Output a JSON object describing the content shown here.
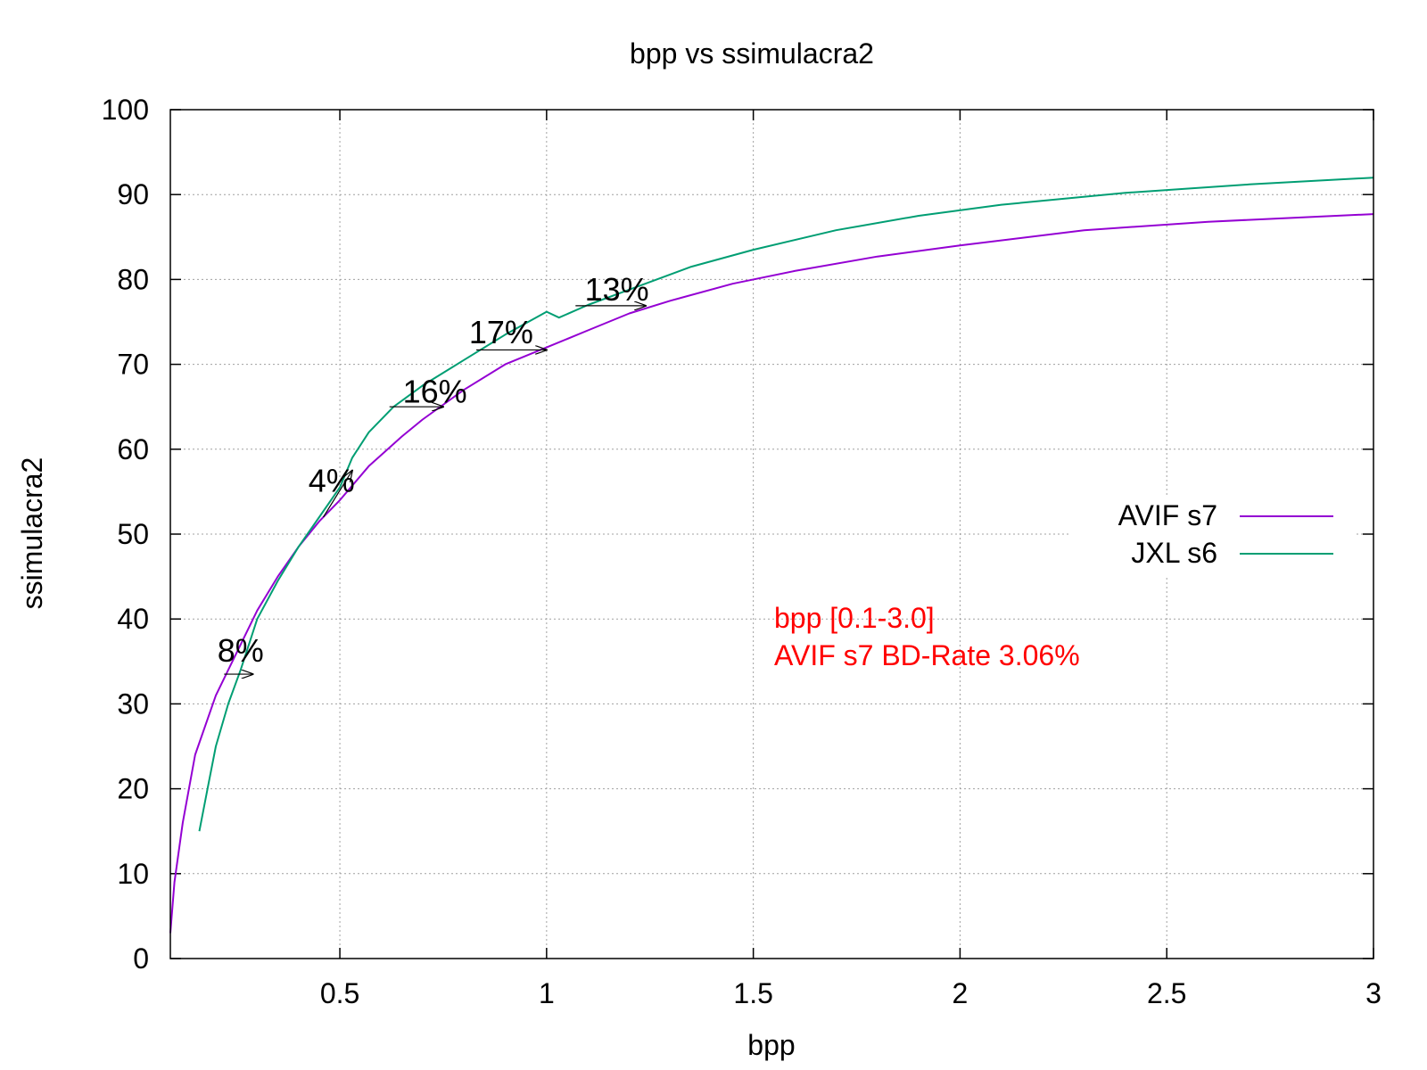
{
  "chart_data": {
    "type": "line",
    "title": "bpp vs ssimulacra2",
    "xlabel": "bpp",
    "ylabel": "ssimulacra2",
    "xlim": [
      0.09,
      3.0
    ],
    "ylim": [
      0,
      100
    ],
    "xticks": [
      0.5,
      1,
      1.5,
      2,
      2.5,
      3
    ],
    "xtick_labels": [
      "0.5",
      "1",
      "1.5",
      "2",
      "2.5",
      "3"
    ],
    "yticks": [
      0,
      10,
      20,
      30,
      40,
      50,
      60,
      70,
      80,
      90,
      100
    ],
    "ytick_labels": [
      "0",
      "10",
      "20",
      "30",
      "40",
      "50",
      "60",
      "70",
      "80",
      "90",
      "100"
    ],
    "grid": true,
    "legend_position": "right",
    "series": [
      {
        "name": "AVIF s7",
        "color": "#9400d3",
        "points": [
          [
            0.09,
            3
          ],
          [
            0.1,
            9
          ],
          [
            0.12,
            16
          ],
          [
            0.15,
            24
          ],
          [
            0.2,
            31
          ],
          [
            0.25,
            36
          ],
          [
            0.3,
            41
          ],
          [
            0.35,
            45
          ],
          [
            0.4,
            48.5
          ],
          [
            0.45,
            51.5
          ],
          [
            0.5,
            54
          ],
          [
            0.57,
            58
          ],
          [
            0.65,
            61.5
          ],
          [
            0.7,
            63.5
          ],
          [
            0.8,
            67
          ],
          [
            0.9,
            70
          ],
          [
            1.0,
            72
          ],
          [
            1.1,
            74
          ],
          [
            1.2,
            76
          ],
          [
            1.3,
            77.5
          ],
          [
            1.45,
            79.5
          ],
          [
            1.6,
            81
          ],
          [
            1.8,
            82.7
          ],
          [
            2.0,
            84
          ],
          [
            2.3,
            85.8
          ],
          [
            2.6,
            86.8
          ],
          [
            3.0,
            87.7
          ]
        ]
      },
      {
        "name": "JXL s6",
        "color": "#009e73",
        "points": [
          [
            0.16,
            15
          ],
          [
            0.18,
            20
          ],
          [
            0.2,
            25
          ],
          [
            0.23,
            30
          ],
          [
            0.26,
            34
          ],
          [
            0.3,
            40
          ],
          [
            0.35,
            44.5
          ],
          [
            0.4,
            48.5
          ],
          [
            0.45,
            52
          ],
          [
            0.5,
            55.5
          ],
          [
            0.53,
            59
          ],
          [
            0.57,
            62
          ],
          [
            0.63,
            65
          ],
          [
            0.7,
            67.5
          ],
          [
            0.8,
            70.5
          ],
          [
            0.9,
            73.5
          ],
          [
            1.0,
            76.2
          ],
          [
            1.03,
            75.5
          ],
          [
            1.1,
            77
          ],
          [
            1.2,
            78.8
          ],
          [
            1.35,
            81.5
          ],
          [
            1.5,
            83.5
          ],
          [
            1.7,
            85.8
          ],
          [
            1.9,
            87.5
          ],
          [
            2.1,
            88.8
          ],
          [
            2.4,
            90.2
          ],
          [
            2.7,
            91.2
          ],
          [
            3.0,
            92
          ]
        ]
      }
    ],
    "annotations": [
      {
        "text": "8%",
        "x": 0.26,
        "y": 35,
        "arrow_from": [
          0.22,
          33.5
        ],
        "arrow_to": [
          0.29,
          33.5
        ]
      },
      {
        "text": "4%",
        "x": 0.48,
        "y": 55,
        "arrow_from": [
          0.46,
          52
        ],
        "arrow_to": [
          0.53,
          57.5
        ]
      },
      {
        "text": "16%",
        "x": 0.73,
        "y": 65.5,
        "arrow_from": [
          0.62,
          65
        ],
        "arrow_to": [
          0.75,
          65
        ]
      },
      {
        "text": "17%",
        "x": 0.89,
        "y": 72.5,
        "arrow_from": [
          0.83,
          71.7
        ],
        "arrow_to": [
          1.0,
          71.7
        ]
      },
      {
        "text": "13%",
        "x": 1.17,
        "y": 77.5,
        "arrow_from": [
          1.07,
          76.9
        ],
        "arrow_to": [
          1.24,
          76.9
        ]
      }
    ],
    "note_color": "#ff0000",
    "note_lines": [
      "bpp [0.1-3.0]",
      "AVIF s7 BD-Rate 3.06%"
    ]
  }
}
